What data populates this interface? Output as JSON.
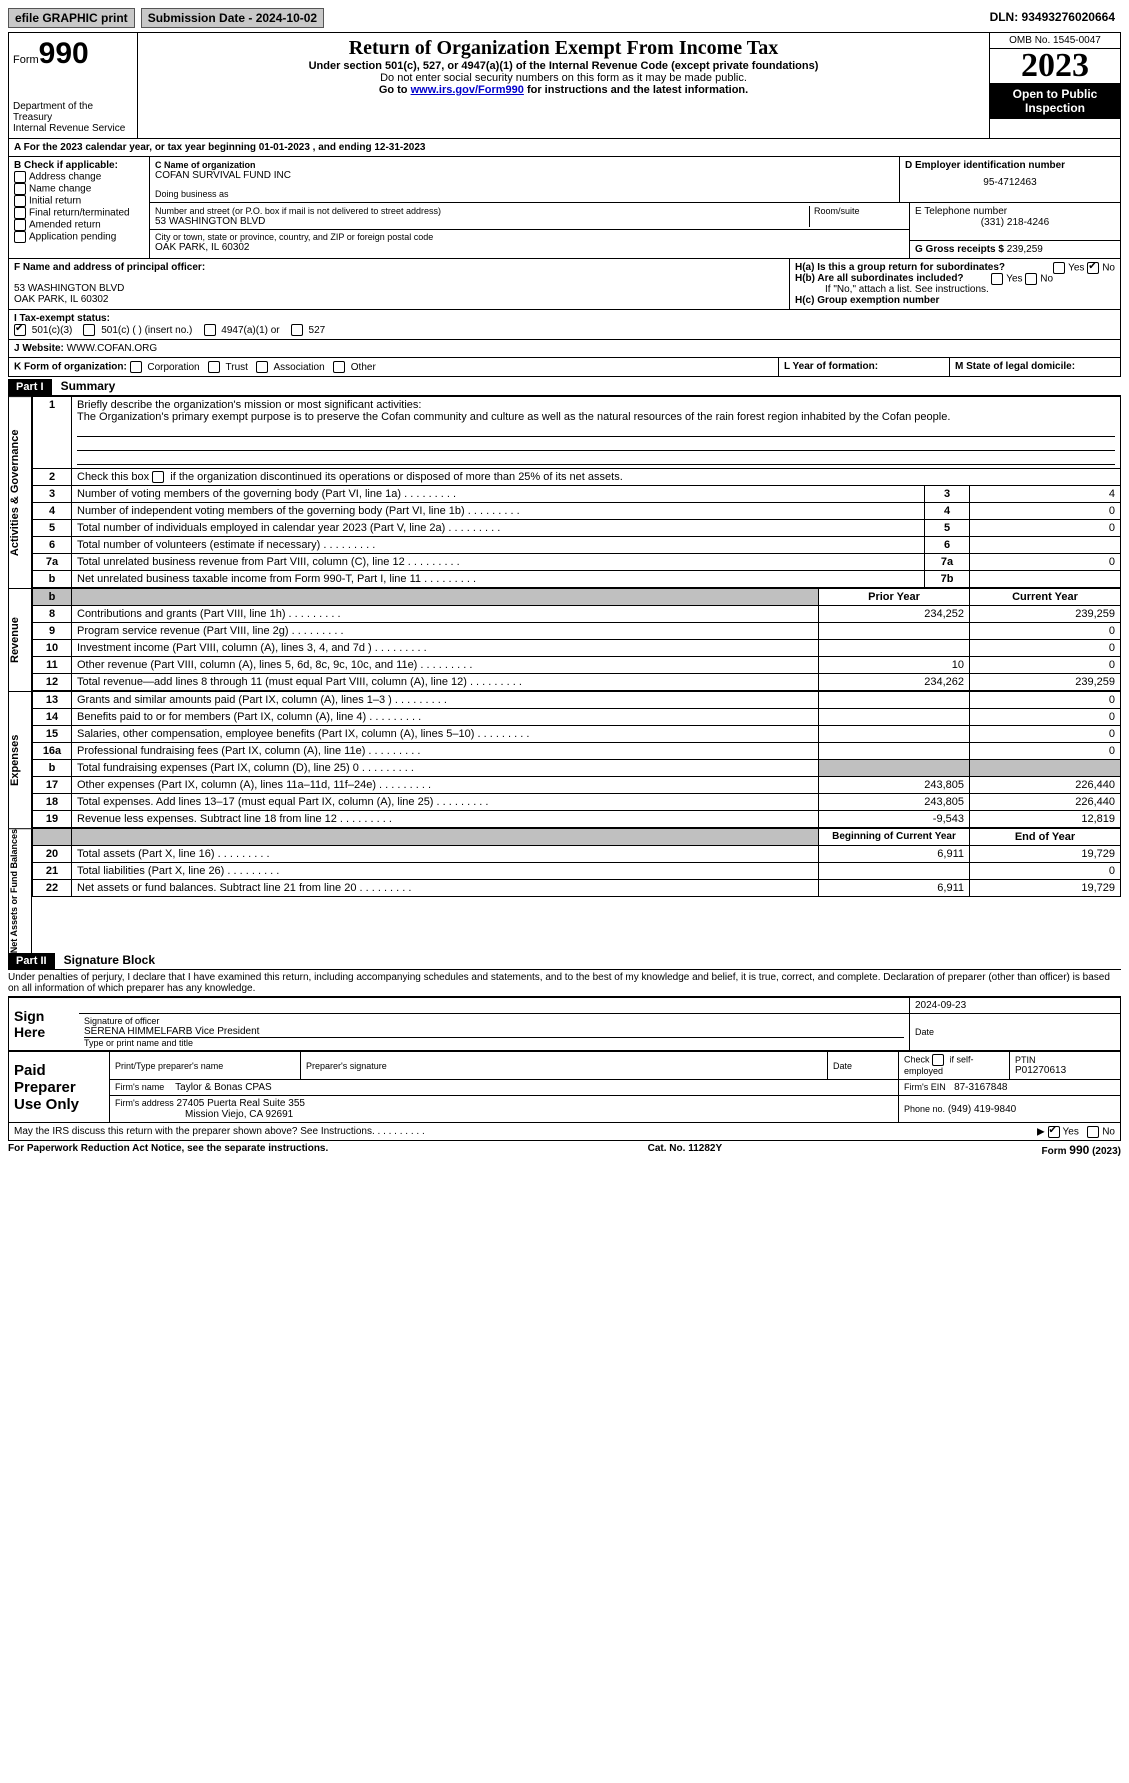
{
  "topbar": {
    "efile": "efile GRAPHIC print",
    "submission": "Submission Date - 2024-10-02",
    "dln": "DLN: 93493276020664"
  },
  "header": {
    "form": "990",
    "form_word": "Form",
    "dept": "Department of the Treasury\nInternal Revenue Service",
    "title": "Return of Organization Exempt From Income Tax",
    "sub1": "Under section 501(c), 527, or 4947(a)(1) of the Internal Revenue Code (except private foundations)",
    "sub2": "Do not enter social security numbers on this form as it may be made public.",
    "sub3_prefix": "Go to ",
    "sub3_link": "www.irs.gov/Form990",
    "sub3_suffix": " for instructions and the latest information.",
    "omb": "OMB No. 1545-0047",
    "year": "2023",
    "open": "Open to Public Inspection"
  },
  "lineA": "For the 2023 calendar year, or tax year beginning 01-01-2023    , and ending 12-31-2023",
  "boxB": {
    "label": "B Check if applicable:",
    "items": [
      "Address change",
      "Name change",
      "Initial return",
      "Final return/terminated",
      "Amended return",
      "Application pending"
    ]
  },
  "boxC": {
    "label_name": "C Name of organization",
    "name": "COFAN SURVIVAL FUND INC",
    "dba_label": "Doing business as",
    "street_label": "Number and street (or P.O. box if mail is not delivered to street address)",
    "street": "53 WASHINGTON BLVD",
    "room_label": "Room/suite",
    "city_label": "City or town, state or province, country, and ZIP or foreign postal code",
    "city": "OAK PARK, IL  60302"
  },
  "boxD": {
    "label": "D Employer identification number",
    "value": "95-4712463"
  },
  "boxE": {
    "label": "E Telephone number",
    "value": "(331) 218-4246"
  },
  "boxG": {
    "label": "G Gross receipts $",
    "value": "239,259"
  },
  "boxF": {
    "label": "F  Name and address of principal officer:",
    "addr1": "53 WASHINGTON BLVD",
    "addr2": "OAK PARK, IL  60302"
  },
  "boxH": {
    "ha": "H(a)  Is this a group return for subordinates?",
    "hb": "H(b)  Are all subordinates included?",
    "hb_note": "If \"No,\" attach a list. See instructions.",
    "hc": "H(c)  Group exemption number"
  },
  "lineI": {
    "label": "I     Tax-exempt status:",
    "opts": [
      "501(c)(3)",
      "501(c) (  ) (insert no.)",
      "4947(a)(1) or",
      "527"
    ]
  },
  "lineJ": {
    "label": "J    Website:",
    "value": "WWW.COFAN.ORG"
  },
  "lineK": {
    "label": "K Form of organization:",
    "opts": [
      "Corporation",
      "Trust",
      "Association",
      "Other"
    ]
  },
  "lineL": "L Year of formation:",
  "lineM": "M State of legal domicile:",
  "part1": {
    "header": "Part I",
    "title": "Summary"
  },
  "summary": {
    "l1_label": "Briefly describe the organization's mission or most significant activities:",
    "l1_text": "The Organization's primary exempt purpose is to preserve the Cofan community and culture as well as the natural resources of the rain forest region inhabited by the Cofan people.",
    "l2": "Check this box        if the organization discontinued its operations or disposed of more than 25% of its net assets.",
    "rows": [
      {
        "n": "3",
        "t": "Number of voting members of the governing body (Part VI, line 1a)",
        "ref": "3",
        "v": "4"
      },
      {
        "n": "4",
        "t": "Number of independent voting members of the governing body (Part VI, line 1b)",
        "ref": "4",
        "v": "0"
      },
      {
        "n": "5",
        "t": "Total number of individuals employed in calendar year 2023 (Part V, line 2a)",
        "ref": "5",
        "v": "0"
      },
      {
        "n": "6",
        "t": "Total number of volunteers (estimate if necessary)",
        "ref": "6",
        "v": ""
      },
      {
        "n": "7a",
        "t": "Total unrelated business revenue from Part VIII, column (C), line 12",
        "ref": "7a",
        "v": "0"
      },
      {
        "n": "b",
        "t": "Net unrelated business taxable income from Form 990-T, Part I, line 11",
        "ref": "7b",
        "v": ""
      }
    ],
    "col_headers": {
      "prior": "Prior Year",
      "curr": "Current Year"
    },
    "revenue": [
      {
        "n": "8",
        "t": "Contributions and grants (Part VIII, line 1h)",
        "p": "234,252",
        "c": "239,259"
      },
      {
        "n": "9",
        "t": "Program service revenue (Part VIII, line 2g)",
        "p": "",
        "c": "0"
      },
      {
        "n": "10",
        "t": "Investment income (Part VIII, column (A), lines 3, 4, and 7d )",
        "p": "",
        "c": "0"
      },
      {
        "n": "11",
        "t": "Other revenue (Part VIII, column (A), lines 5, 6d, 8c, 9c, 10c, and 11e)",
        "p": "10",
        "c": "0"
      },
      {
        "n": "12",
        "t": "Total revenue—add lines 8 through 11 (must equal Part VIII, column (A), line 12)",
        "p": "234,262",
        "c": "239,259"
      }
    ],
    "expenses": [
      {
        "n": "13",
        "t": "Grants and similar amounts paid (Part IX, column (A), lines 1–3 )",
        "p": "",
        "c": "0"
      },
      {
        "n": "14",
        "t": "Benefits paid to or for members (Part IX, column (A), line 4)",
        "p": "",
        "c": "0"
      },
      {
        "n": "15",
        "t": "Salaries, other compensation, employee benefits (Part IX, column (A), lines 5–10)",
        "p": "",
        "c": "0"
      },
      {
        "n": "16a",
        "t": "Professional fundraising fees (Part IX, column (A), line 11e)",
        "p": "",
        "c": "0"
      },
      {
        "n": "b",
        "t": "Total fundraising expenses (Part IX, column (D), line 25) 0",
        "p": "grey",
        "c": "grey"
      },
      {
        "n": "17",
        "t": "Other expenses (Part IX, column (A), lines 11a–11d, 11f–24e)",
        "p": "243,805",
        "c": "226,440"
      },
      {
        "n": "18",
        "t": "Total expenses. Add lines 13–17 (must equal Part IX, column (A), line 25)",
        "p": "243,805",
        "c": "226,440"
      },
      {
        "n": "19",
        "t": "Revenue less expenses. Subtract line 18 from line 12",
        "p": "-9,543",
        "c": "12,819"
      }
    ],
    "net_headers": {
      "prior": "Beginning of Current Year",
      "curr": "End of Year"
    },
    "netassets": [
      {
        "n": "20",
        "t": "Total assets (Part X, line 16)",
        "p": "6,911",
        "c": "19,729"
      },
      {
        "n": "21",
        "t": "Total liabilities (Part X, line 26)",
        "p": "",
        "c": "0"
      },
      {
        "n": "22",
        "t": "Net assets or fund balances. Subtract line 21 from line 20",
        "p": "6,911",
        "c": "19,729"
      }
    ],
    "sections": {
      "ag": "Activities & Governance",
      "rev": "Revenue",
      "exp": "Expenses",
      "net": "Net Assets or Fund Balances"
    }
  },
  "part2": {
    "header": "Part II",
    "title": "Signature Block"
  },
  "sig": {
    "perjury": "Under penalties of perjury, I declare that I have examined this return, including accompanying schedules and statements, and to the best of my knowledge and belief, it is true, correct, and complete. Declaration of preparer (other than officer) is based on all information of which preparer has any knowledge.",
    "sign_here": "Sign Here",
    "date": "2024-09-23",
    "officer_sig_label": "Signature of officer",
    "officer": "SERENA HIMMELFARB  Vice President",
    "officer_label": "Type or print name and title",
    "date_label": "Date",
    "paid": "Paid Preparer Use Only",
    "pt_name_label": "Print/Type preparer's name",
    "pt_sig_label": "Preparer's signature",
    "pt_date_label": "Date",
    "self_emp": "Check        if self-employed",
    "ptin_label": "PTIN",
    "ptin": "P01270613",
    "firm_name_label": "Firm's name",
    "firm_name": "Taylor & Bonas CPAS",
    "firm_ein_label": "Firm's EIN",
    "firm_ein": "87-3167848",
    "firm_addr_label": "Firm's address",
    "firm_addr1": "27405 Puerta Real Suite 355",
    "firm_addr2": "Mission Viejo, CA  92691",
    "phone_label": "Phone no.",
    "phone": "(949) 419-9840",
    "discuss": "May the IRS discuss this return with the preparer shown above? See Instructions."
  },
  "footer": {
    "pra": "For Paperwork Reduction Act Notice, see the separate instructions.",
    "cat": "Cat. No. 11282Y",
    "form": "Form 990 (2023)"
  },
  "yes": "Yes",
  "no": "No",
  "arrow": "▶"
}
